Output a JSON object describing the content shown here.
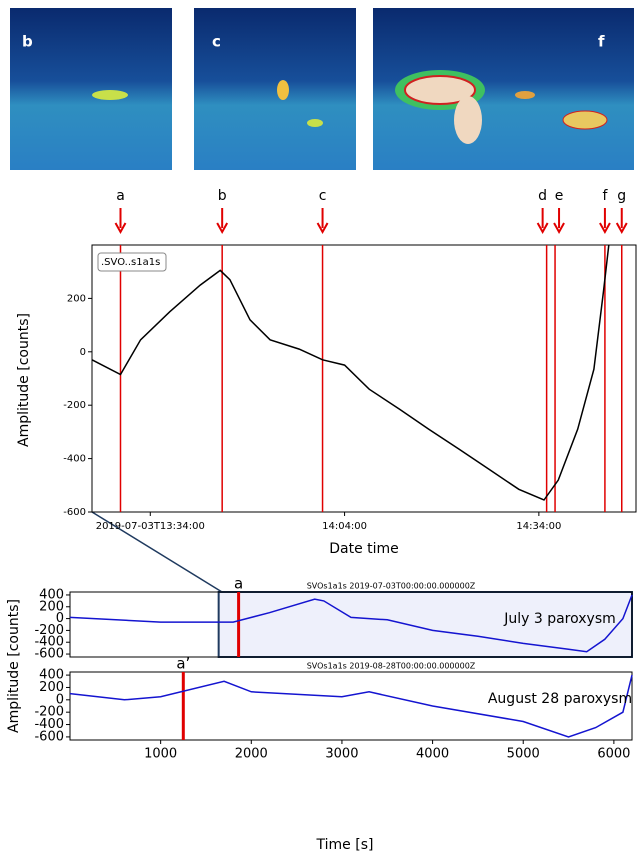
{
  "images": [
    {
      "label": "b"
    },
    {
      "label": "c"
    },
    {
      "label": "f"
    }
  ],
  "chart_data": [
    {
      "type": "line",
      "xlabel": "Date time",
      "ylabel": "Amplitude [counts]",
      "x": [
        -9,
        -4.6,
        -1.5,
        3,
        7.7,
        10.8,
        12.3,
        15.4,
        18.5,
        23,
        26.6,
        30,
        33.8,
        38.5,
        43,
        47.7,
        52.3,
        56.9,
        60.8,
        63,
        66,
        68.5,
        70,
        70.8
      ],
      "series": [
        {
          "name": ".SVO..s1a1s",
          "color": "#000000",
          "values": [
            -30,
            -85,
            45,
            150,
            250,
            305,
            270,
            120,
            45,
            10,
            -30,
            -50,
            -140,
            -215,
            -290,
            -365,
            -440,
            -515,
            -555,
            -480,
            -290,
            -65,
            230,
            400
          ]
        }
      ],
      "xlim": [
        -9,
        75
      ],
      "ylim": [
        -600,
        400
      ],
      "xticks": [
        {
          "value": 0,
          "label": "2019-07-03T13:34:00"
        },
        {
          "value": 30,
          "label": "14:04:00"
        },
        {
          "value": 60,
          "label": "14:34:00"
        }
      ],
      "yticks": [
        -600,
        -400,
        -200,
        0,
        200
      ],
      "events": [
        {
          "label": "a",
          "x": -4.6
        },
        {
          "label": "b",
          "x": 11.1
        },
        {
          "label": "c",
          "x": 26.6
        },
        {
          "label": "d",
          "x": 61.2
        },
        {
          "label": "e",
          "x": 62.5
        },
        {
          "label": "f",
          "x": 70.2
        },
        {
          "label": "g",
          "x": 72.8
        }
      ],
      "event_color": "#e00000"
    },
    {
      "type": "line",
      "subtitle": "SVOs1a1s 2019-07-03T00:00:00.000000Z",
      "annotation": "July 3 paroxysm",
      "ylabel": "Amplitude [counts]",
      "x": [
        0,
        1000,
        1800,
        2200,
        2700,
        2800,
        3100,
        3500,
        4000,
        4500,
        5000,
        5500,
        5700,
        5900,
        6100,
        6200
      ],
      "series": [
        {
          "color": "#1414d0",
          "values": [
            20,
            -60,
            -60,
            100,
            330,
            300,
            20,
            -20,
            -200,
            -300,
            -420,
            -520,
            -560,
            -350,
            0,
            400
          ]
        }
      ],
      "xlim": [
        0,
        6200
      ],
      "ylim": [
        -650,
        450
      ],
      "yticks": [
        -600,
        -400,
        -200,
        0,
        200,
        400
      ],
      "highlight": [
        1640,
        6200
      ],
      "events": [
        {
          "label": "a",
          "x": 1860
        }
      ],
      "event_color": "#e00000"
    },
    {
      "type": "line",
      "subtitle": "SVOs1a1s 2019-08-28T00:00:00.000000Z",
      "annotation": "August 28 paroxysm",
      "xlabel": "Time [s]",
      "x": [
        0,
        600,
        1000,
        1700,
        2000,
        3000,
        3300,
        4000,
        5000,
        5500,
        5800,
        6100,
        6200
      ],
      "series": [
        {
          "color": "#1414d0",
          "values": [
            100,
            0,
            50,
            300,
            130,
            50,
            130,
            -100,
            -350,
            -600,
            -450,
            -200,
            400
          ]
        }
      ],
      "xlim": [
        0,
        6200
      ],
      "ylim": [
        -650,
        450
      ],
      "yticks": [
        -600,
        -400,
        -200,
        0,
        200,
        400
      ],
      "xticks": [
        1000,
        2000,
        3000,
        4000,
        5000,
        6000
      ],
      "events": [
        {
          "label": "a’",
          "x": 1250
        }
      ],
      "event_color": "#e00000"
    }
  ]
}
